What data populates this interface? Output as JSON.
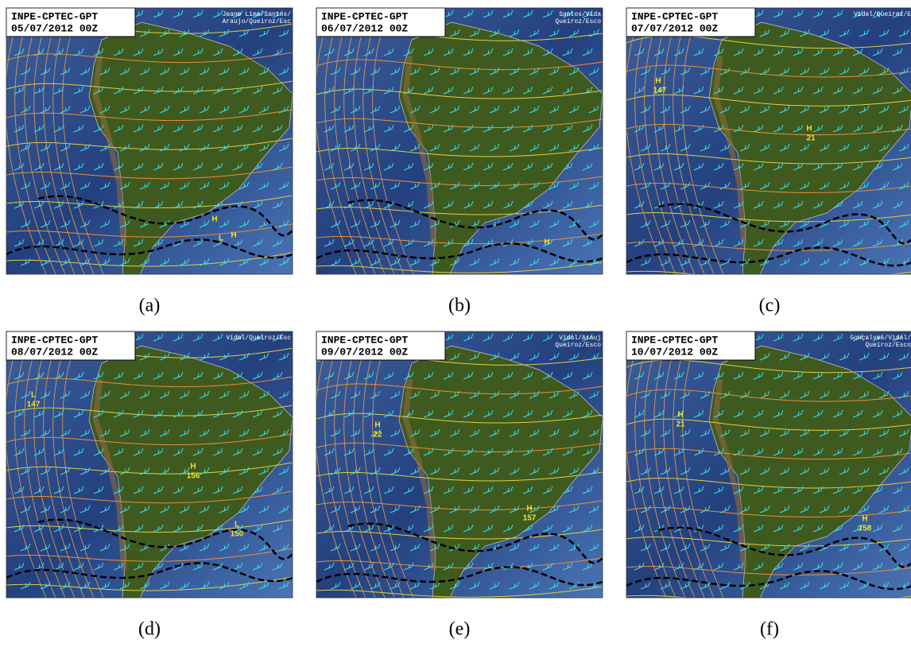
{
  "panels": [
    {
      "header": "INPE-CPTEC-GPT",
      "date": "05/07/2012 00Z",
      "credit": [
        "Jeane Lima/Santos/",
        "Araujo/Queiroz/Esc"
      ],
      "caption": "(a)",
      "labels": [
        "H",
        "L",
        "H"
      ]
    },
    {
      "header": "INPE-CPTEC-GPT",
      "date": "06/07/2012 00Z",
      "credit": [
        "Santos/Vida",
        "Queiroz/Esco"
      ],
      "caption": "(b)",
      "labels": [
        "H"
      ]
    },
    {
      "header": "INPE-CPTEC-GPT",
      "date": "07/07/2012 00Z",
      "credit": [
        "Vidal/Queiroz/E"
      ],
      "caption": "(c)",
      "labels": [
        "H",
        "147",
        "H",
        "21"
      ]
    },
    {
      "header": "INPE-CPTEC-GPT",
      "date": "08/07/2012 00Z",
      "credit": [
        "Vidal/Queiroz/Esc"
      ],
      "caption": "(d)",
      "labels": [
        "L",
        "147",
        "H",
        "156",
        "L",
        "150"
      ]
    },
    {
      "header": "INPE-CPTEC-GPT",
      "date": "09/07/2012 00Z",
      "credit": [
        "Vidal/Arauj",
        "Queiroz/Esco"
      ],
      "caption": "(e)",
      "labels": [
        "H",
        "22",
        "H",
        "157"
      ]
    },
    {
      "header": "INPE-CPTEC-GPT",
      "date": "10/07/2012 00Z",
      "credit": [
        "Gonçalves/Vidal/",
        "Queiroz/Esco"
      ],
      "caption": "(f)",
      "labels": [
        "H",
        "21",
        "H",
        "158"
      ]
    }
  ]
}
